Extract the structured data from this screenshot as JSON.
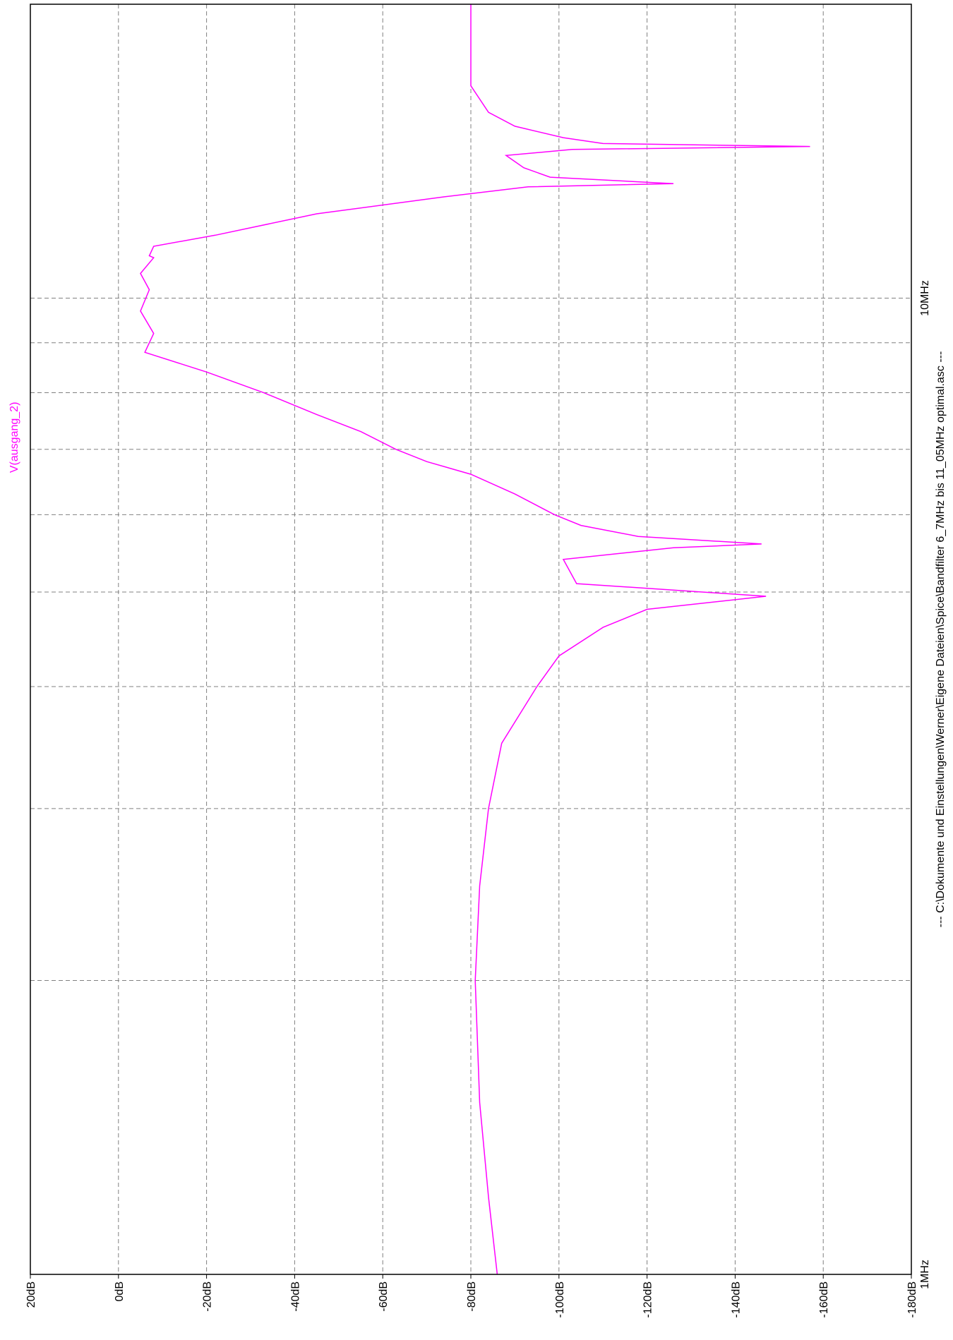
{
  "chart_data": {
    "type": "line",
    "title": "--- C:\\Dokumente und Einstellungen\\Werner\\Eigene Dateien\\Spice\\Bandfilter 6_7MHz bis 11_05MHz optimal.asc ---",
    "x_scale": "log",
    "y_tick_labels": [
      "20dB",
      "0dB",
      "-20dB",
      "-40dB",
      "-60dB",
      "-80dB",
      "-100dB",
      "-120dB",
      "-140dB",
      "-160dB",
      "-180dB"
    ],
    "x_tick_labels": [
      "1MHz",
      "10MHz"
    ],
    "ylim": [
      -180,
      20
    ],
    "xlim": [
      1,
      20
    ],
    "xlabel": "",
    "ylabel": "",
    "grid": true,
    "colors": {
      "trace": "#ff00ff",
      "grid": "#808080",
      "frame": "#000000"
    },
    "series": [
      {
        "name": "V(ausgang_2)",
        "x": [
          1.0,
          1.2,
          1.5,
          2.0,
          2.5,
          3.0,
          3.5,
          4.0,
          4.3,
          4.6,
          4.8,
          4.95,
          5.1,
          5.4,
          5.55,
          5.6,
          5.7,
          5.85,
          6.0,
          6.3,
          6.6,
          6.8,
          7.0,
          7.3,
          7.6,
          8.0,
          8.4,
          8.8,
          9.2,
          9.7,
          10.2,
          10.6,
          11.0,
          11.05,
          11.3,
          11.6,
          12.2,
          12.7,
          13.0,
          13.1,
          13.3,
          13.6,
          14.0,
          14.2,
          14.3,
          14.4,
          14.6,
          15.0,
          15.5,
          16.5,
          18.0,
          20.0
        ],
        "y": [
          -86,
          -84,
          -82,
          -81,
          -82,
          -84,
          -87,
          -95,
          -100,
          -110,
          -120,
          -147,
          -104,
          -101,
          -126,
          -146,
          -118,
          -105,
          -99,
          -90,
          -80,
          -70,
          -63,
          -55,
          -45,
          -33,
          -20,
          -6,
          -8,
          -5,
          -7,
          -5,
          -8,
          -7,
          -8,
          -22,
          -45,
          -74,
          -93,
          -126,
          -98,
          -92,
          -88,
          -103,
          -157,
          -110,
          -101,
          -90,
          -84,
          -80,
          -80,
          -80
        ]
      }
    ]
  }
}
